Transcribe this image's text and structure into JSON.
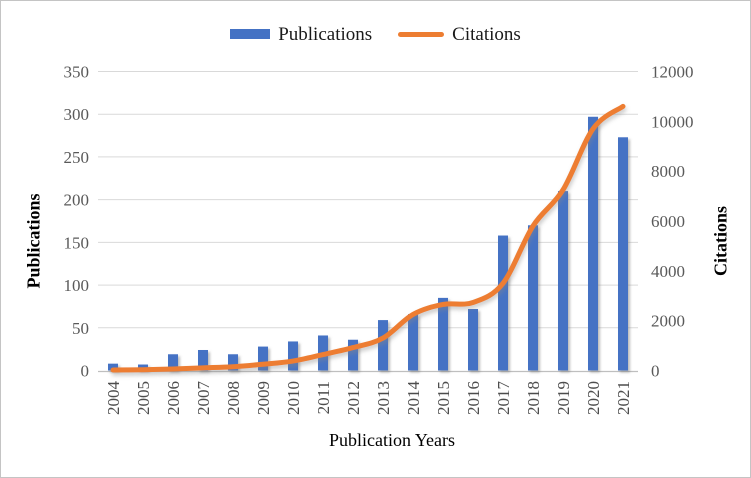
{
  "figure": {
    "background": "#ffffff",
    "border_color": "#c4c4c4"
  },
  "legend": {
    "position": "top",
    "items": [
      {
        "label": "Publications",
        "marker": "bar-swatch",
        "color": "#4472C4"
      },
      {
        "label": "Citations",
        "marker": "line-swatch",
        "color": "#ED7D31"
      }
    ]
  },
  "chart_data": {
    "type": "bar+line combo",
    "title": "",
    "categories": [
      "2004",
      "2005",
      "2006",
      "2007",
      "2008",
      "2009",
      "2010",
      "2011",
      "2012",
      "2013",
      "2014",
      "2015",
      "2016",
      "2017",
      "2018",
      "2019",
      "2020",
      "2021"
    ],
    "series": [
      {
        "name": "Publications",
        "type": "bar",
        "axis": "left",
        "color": "#4472C4",
        "values": [
          8,
          7,
          19,
          24,
          19,
          28,
          34,
          41,
          36,
          59,
          66,
          85,
          72,
          158,
          170,
          210,
          297,
          273
        ]
      },
      {
        "name": "Citations",
        "type": "line",
        "axis": "right",
        "color": "#ED7D31",
        "values": [
          20,
          30,
          60,
          105,
          150,
          250,
          380,
          640,
          920,
          1300,
          2250,
          2650,
          2730,
          3500,
          5800,
          7250,
          9700,
          10600
        ]
      }
    ],
    "x_axis": {
      "title": "Publication Years",
      "label_rotation": -90
    },
    "left_axis": {
      "title": "Publications",
      "min": 0,
      "max": 350,
      "step": 50,
      "tick_labels": [
        "0",
        "50",
        "100",
        "150",
        "200",
        "250",
        "300",
        "350"
      ]
    },
    "right_axis": {
      "title": "Citations",
      "min": 0,
      "max": 12000,
      "step": 2000,
      "tick_labels": [
        "0",
        "2000",
        "4000",
        "6000",
        "8000",
        "10000",
        "12000"
      ]
    },
    "gridlines": {
      "show": true,
      "color": "#D9D9D9"
    },
    "axis_line_color": "#BFBFBF",
    "tick_label_color": "#595959",
    "legend_position": "top"
  }
}
